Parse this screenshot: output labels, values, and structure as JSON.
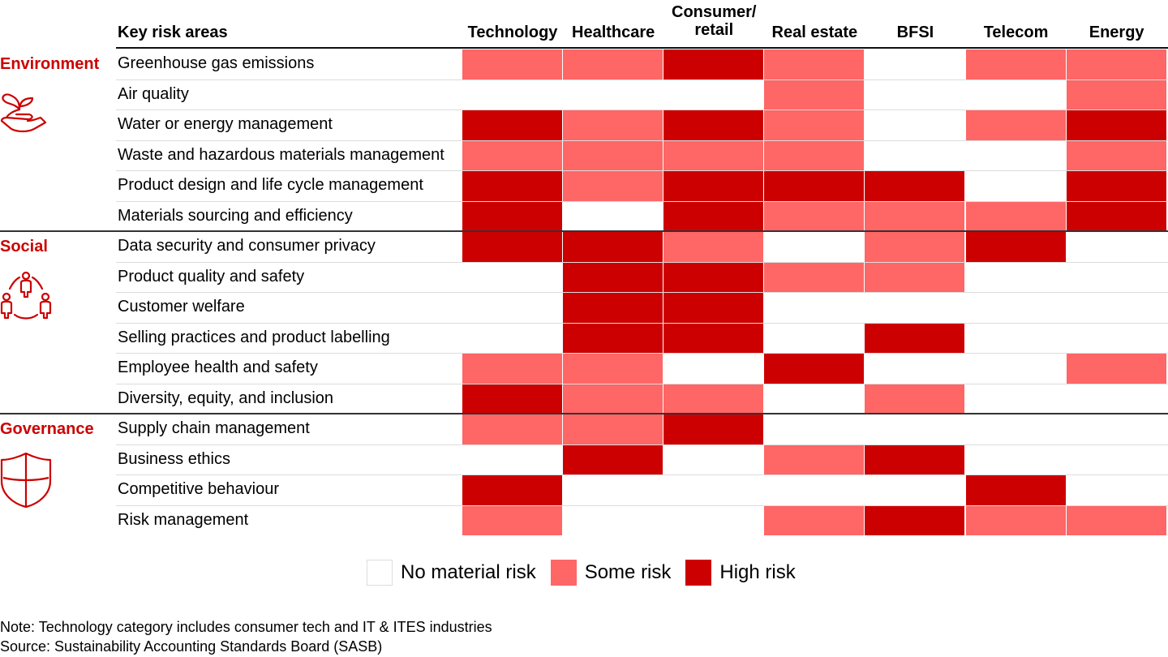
{
  "chart_data": {
    "type": "heatmap",
    "title": "",
    "row_header": "Key risk areas",
    "columns": [
      "Technology",
      "Healthcare",
      "Consumer/ retail",
      "Real estate",
      "BFSI",
      "Telecom",
      "Energy"
    ],
    "levels": {
      "0": "No material risk",
      "1": "Some risk",
      "2": "High risk"
    },
    "groups": [
      {
        "name": "Environment",
        "icon": "plant-in-hand-icon",
        "rows": [
          {
            "label": "Greenhouse gas emissions",
            "values": [
              1,
              1,
              2,
              1,
              0,
              1,
              1
            ]
          },
          {
            "label": "Air quality",
            "values": [
              0,
              0,
              0,
              1,
              0,
              0,
              1
            ]
          },
          {
            "label": "Water or energy management",
            "values": [
              2,
              1,
              2,
              1,
              0,
              1,
              2
            ]
          },
          {
            "label": "Waste and hazardous materials management",
            "values": [
              1,
              1,
              1,
              1,
              0,
              0,
              1
            ]
          },
          {
            "label": "Product design and life cycle management",
            "values": [
              2,
              1,
              2,
              2,
              2,
              0,
              2
            ]
          },
          {
            "label": "Materials sourcing and efficiency",
            "values": [
              2,
              0,
              2,
              1,
              1,
              1,
              2
            ]
          }
        ]
      },
      {
        "name": "Social",
        "icon": "people-circle-icon",
        "rows": [
          {
            "label": "Data security and consumer privacy",
            "values": [
              2,
              2,
              1,
              0,
              1,
              2,
              0
            ]
          },
          {
            "label": "Product quality and safety",
            "values": [
              0,
              2,
              2,
              1,
              1,
              0,
              0
            ]
          },
          {
            "label": "Customer welfare",
            "values": [
              0,
              2,
              2,
              0,
              0,
              0,
              0
            ]
          },
          {
            "label": "Selling practices and product labelling",
            "values": [
              0,
              2,
              2,
              0,
              2,
              0,
              0
            ]
          },
          {
            "label": "Employee health and safety",
            "values": [
              1,
              1,
              0,
              2,
              0,
              0,
              1
            ]
          },
          {
            "label": "Diversity, equity, and inclusion",
            "values": [
              2,
              1,
              1,
              0,
              1,
              0,
              0
            ]
          }
        ]
      },
      {
        "name": "Governance",
        "icon": "shield-icon",
        "rows": [
          {
            "label": "Supply chain management",
            "values": [
              1,
              1,
              2,
              0,
              0,
              0,
              0
            ]
          },
          {
            "label": "Business ethics",
            "values": [
              0,
              2,
              0,
              1,
              2,
              0,
              0
            ]
          },
          {
            "label": "Competitive behaviour",
            "values": [
              2,
              0,
              0,
              0,
              0,
              2,
              0
            ]
          },
          {
            "label": "Risk management",
            "values": [
              1,
              0,
              0,
              1,
              2,
              1,
              1
            ]
          }
        ]
      }
    ],
    "legend": [
      {
        "label": "No material risk",
        "color": "#ffffff"
      },
      {
        "label": "Some risk",
        "color": "#ff6666"
      },
      {
        "label": "High risk",
        "color": "#cc0000"
      }
    ],
    "legend_placement": "bottom-center"
  },
  "colors": {
    "none": "#ffffff",
    "some": "#ff6666",
    "high": "#cc0000",
    "accent": "#cc0000"
  },
  "header": {
    "key": "Key risk areas",
    "col_lines": [
      [
        "Technology"
      ],
      [
        "Healthcare"
      ],
      [
        "Consumer/",
        "retail"
      ],
      [
        "Real estate"
      ],
      [
        "BFSI"
      ],
      [
        "Telecom"
      ],
      [
        "Energy"
      ]
    ]
  },
  "notes": {
    "note": "Note: Technology category includes consumer tech and IT & ITES industries",
    "source": "Source: Sustainability Accounting Standards Board (SASB)"
  }
}
